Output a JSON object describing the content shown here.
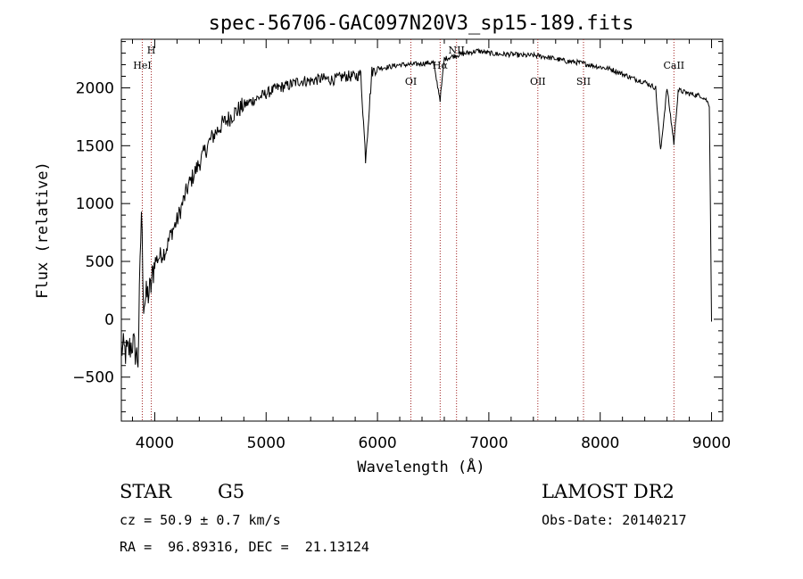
{
  "chart_data": {
    "type": "line",
    "title": "spec-56706-GAC097N20V3_sp15-189.fits",
    "xlabel": "Wavelength (Å)",
    "ylabel": "Flux (relative)",
    "xlim": [
      3700,
      9100
    ],
    "ylim": [
      -880,
      2420
    ],
    "xticks": [
      4000,
      5000,
      6000,
      7000,
      8000,
      9000
    ],
    "yticks": [
      -500,
      0,
      500,
      1000,
      1500,
      2000
    ],
    "grid": false,
    "series": [
      {
        "x": [
          3700,
          3750,
          3800,
          3850,
          3880,
          3900,
          3930,
          3960,
          4000,
          4050,
          4100,
          4150,
          4200,
          4250,
          4300,
          4350,
          4400,
          4450,
          4500,
          4550,
          4600,
          4650,
          4700,
          4800,
          4900,
          5000,
          5100,
          5200,
          5300,
          5400,
          5500,
          5600,
          5700,
          5800,
          5850,
          5893,
          5950,
          6000,
          6100,
          6200,
          6300,
          6400,
          6500,
          6563,
          6600,
          6700,
          6800,
          6900,
          7000,
          7100,
          7200,
          7300,
          7400,
          7500,
          7600,
          7700,
          7800,
          7900,
          8000,
          8100,
          8200,
          8300,
          8400,
          8498,
          8542,
          8600,
          8662,
          8700,
          8800,
          8900,
          8950,
          8980,
          9000
        ],
        "y": [
          -250,
          -300,
          -200,
          -350,
          950,
          150,
          200,
          250,
          500,
          550,
          600,
          750,
          850,
          1000,
          1150,
          1250,
          1350,
          1450,
          1550,
          1620,
          1680,
          1720,
          1770,
          1850,
          1900,
          1950,
          2000,
          2020,
          2060,
          2060,
          2080,
          2070,
          2100,
          2100,
          2120,
          1390,
          2140,
          2170,
          2180,
          2200,
          2200,
          2210,
          2220,
          1900,
          2250,
          2280,
          2300,
          2320,
          2300,
          2290,
          2290,
          2280,
          2280,
          2270,
          2250,
          2230,
          2220,
          2200,
          2180,
          2160,
          2120,
          2080,
          2050,
          2000,
          1450,
          2000,
          1520,
          1980,
          1950,
          1930,
          1900,
          1850,
          -20
        ]
      }
    ],
    "lines": [
      {
        "name": "HeI",
        "x": 3888
      },
      {
        "name": "H",
        "x": 3969
      },
      {
        "name": "OI",
        "x": 6300
      },
      {
        "name": "Hα",
        "x": 6563
      },
      {
        "name": "NII",
        "x": 6710
      },
      {
        "name": "OII",
        "x": 7440
      },
      {
        "name": "SII",
        "x": 7850
      },
      {
        "name": "CaII",
        "x": 8662
      }
    ]
  },
  "info": {
    "object_type": "STAR",
    "subclass": "G5",
    "survey": "LAMOST DR2",
    "cz": "cz = 50.9 ± 0.7 km/s",
    "obs_date": "Obs-Date: 20140217",
    "coords": "RA =  96.89316, DEC =  21.13124"
  }
}
